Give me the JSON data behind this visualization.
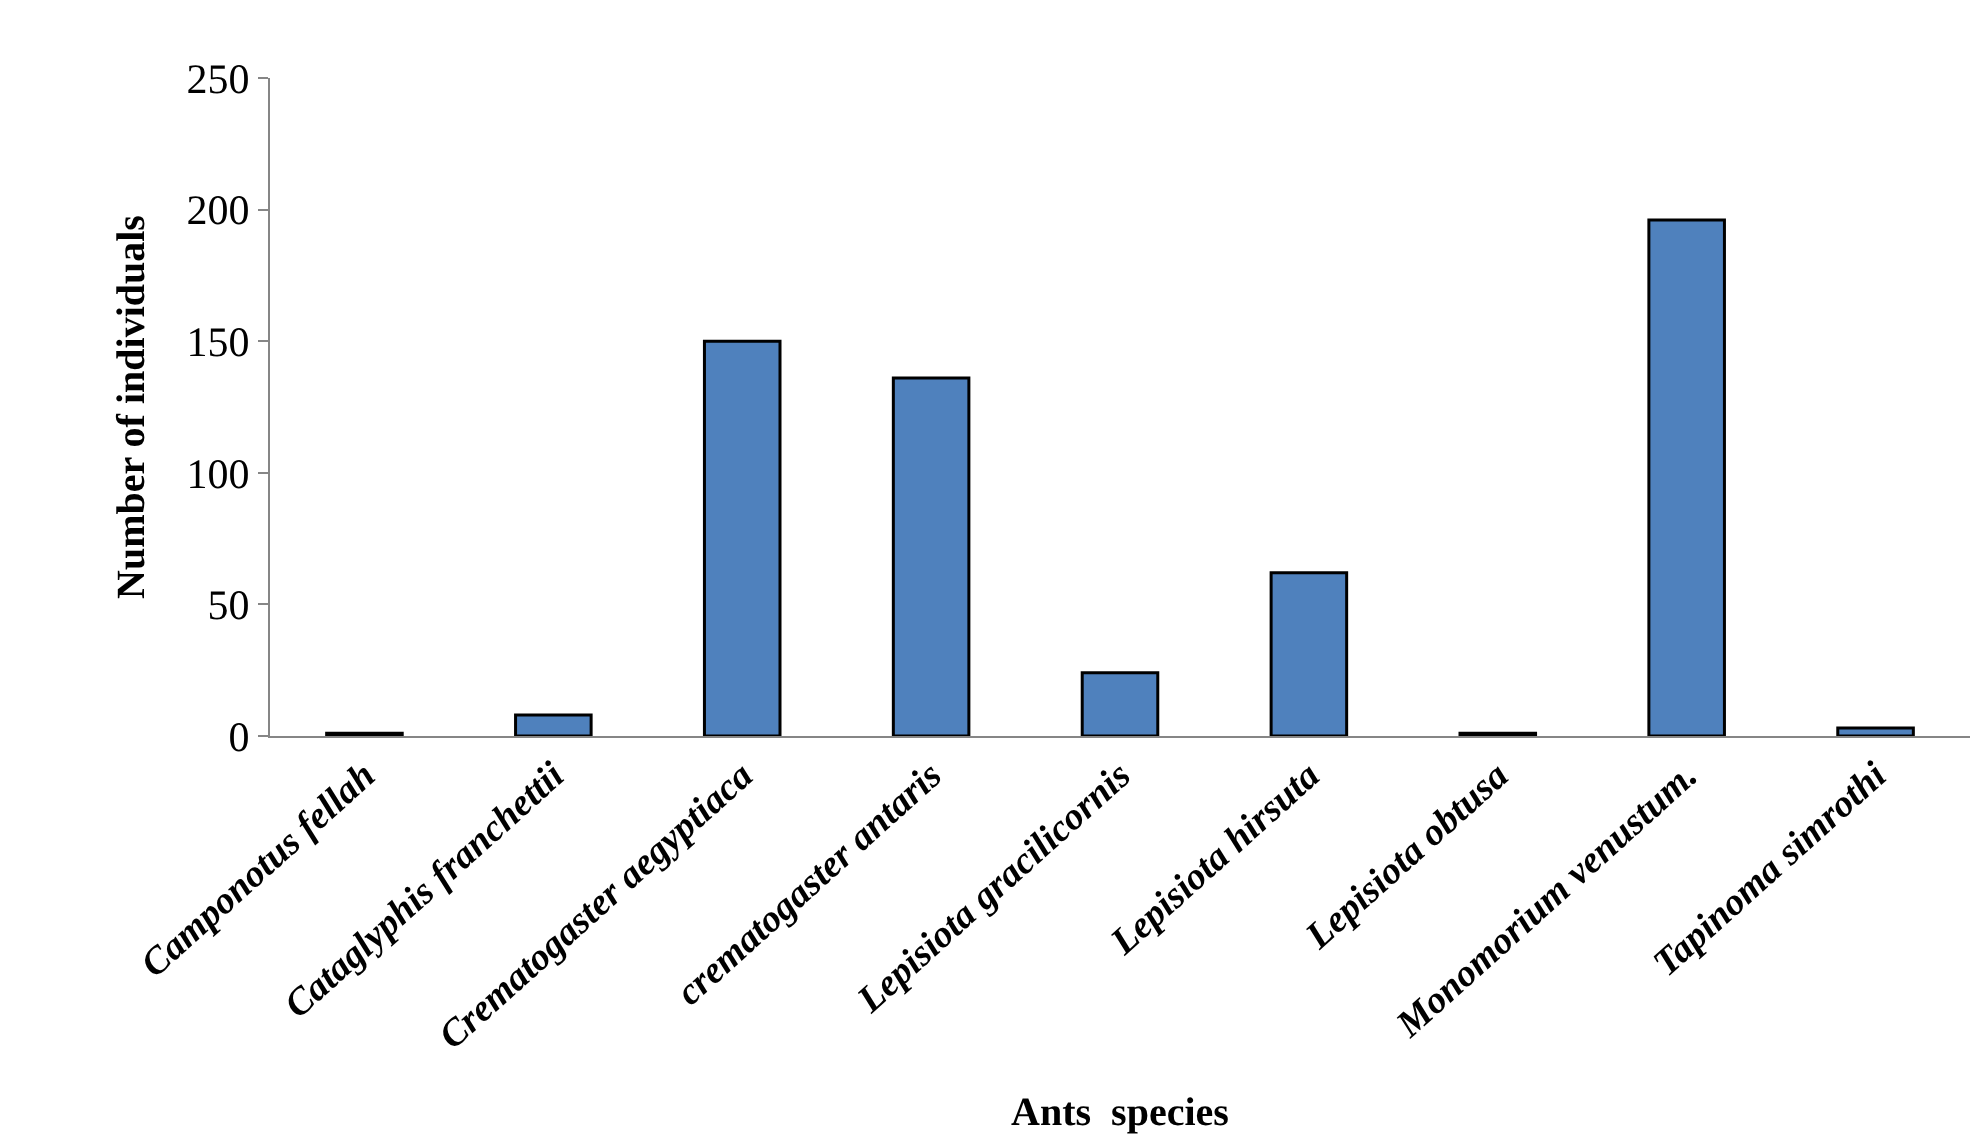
{
  "chart_data": {
    "type": "bar",
    "xlabel": "Ants  species",
    "ylabel": "Number of individuals",
    "categories": [
      "Camponotus fellah",
      "Cataglyphis franchettii",
      "Crematogaster aegyptiaca",
      "crematogaster antaris",
      "Lepisiota gracilicornis",
      "Lepisiota hirsuta",
      "Lepisiota obtusa",
      "Monomorium venustum.",
      "Tapinoma simrothi"
    ],
    "values": [
      1,
      8,
      150,
      136,
      24,
      62,
      1,
      196,
      3
    ],
    "color": "#4f81bd",
    "ylim": [
      0,
      250
    ],
    "yticks": [
      0,
      50,
      100,
      150,
      200,
      250
    ]
  }
}
